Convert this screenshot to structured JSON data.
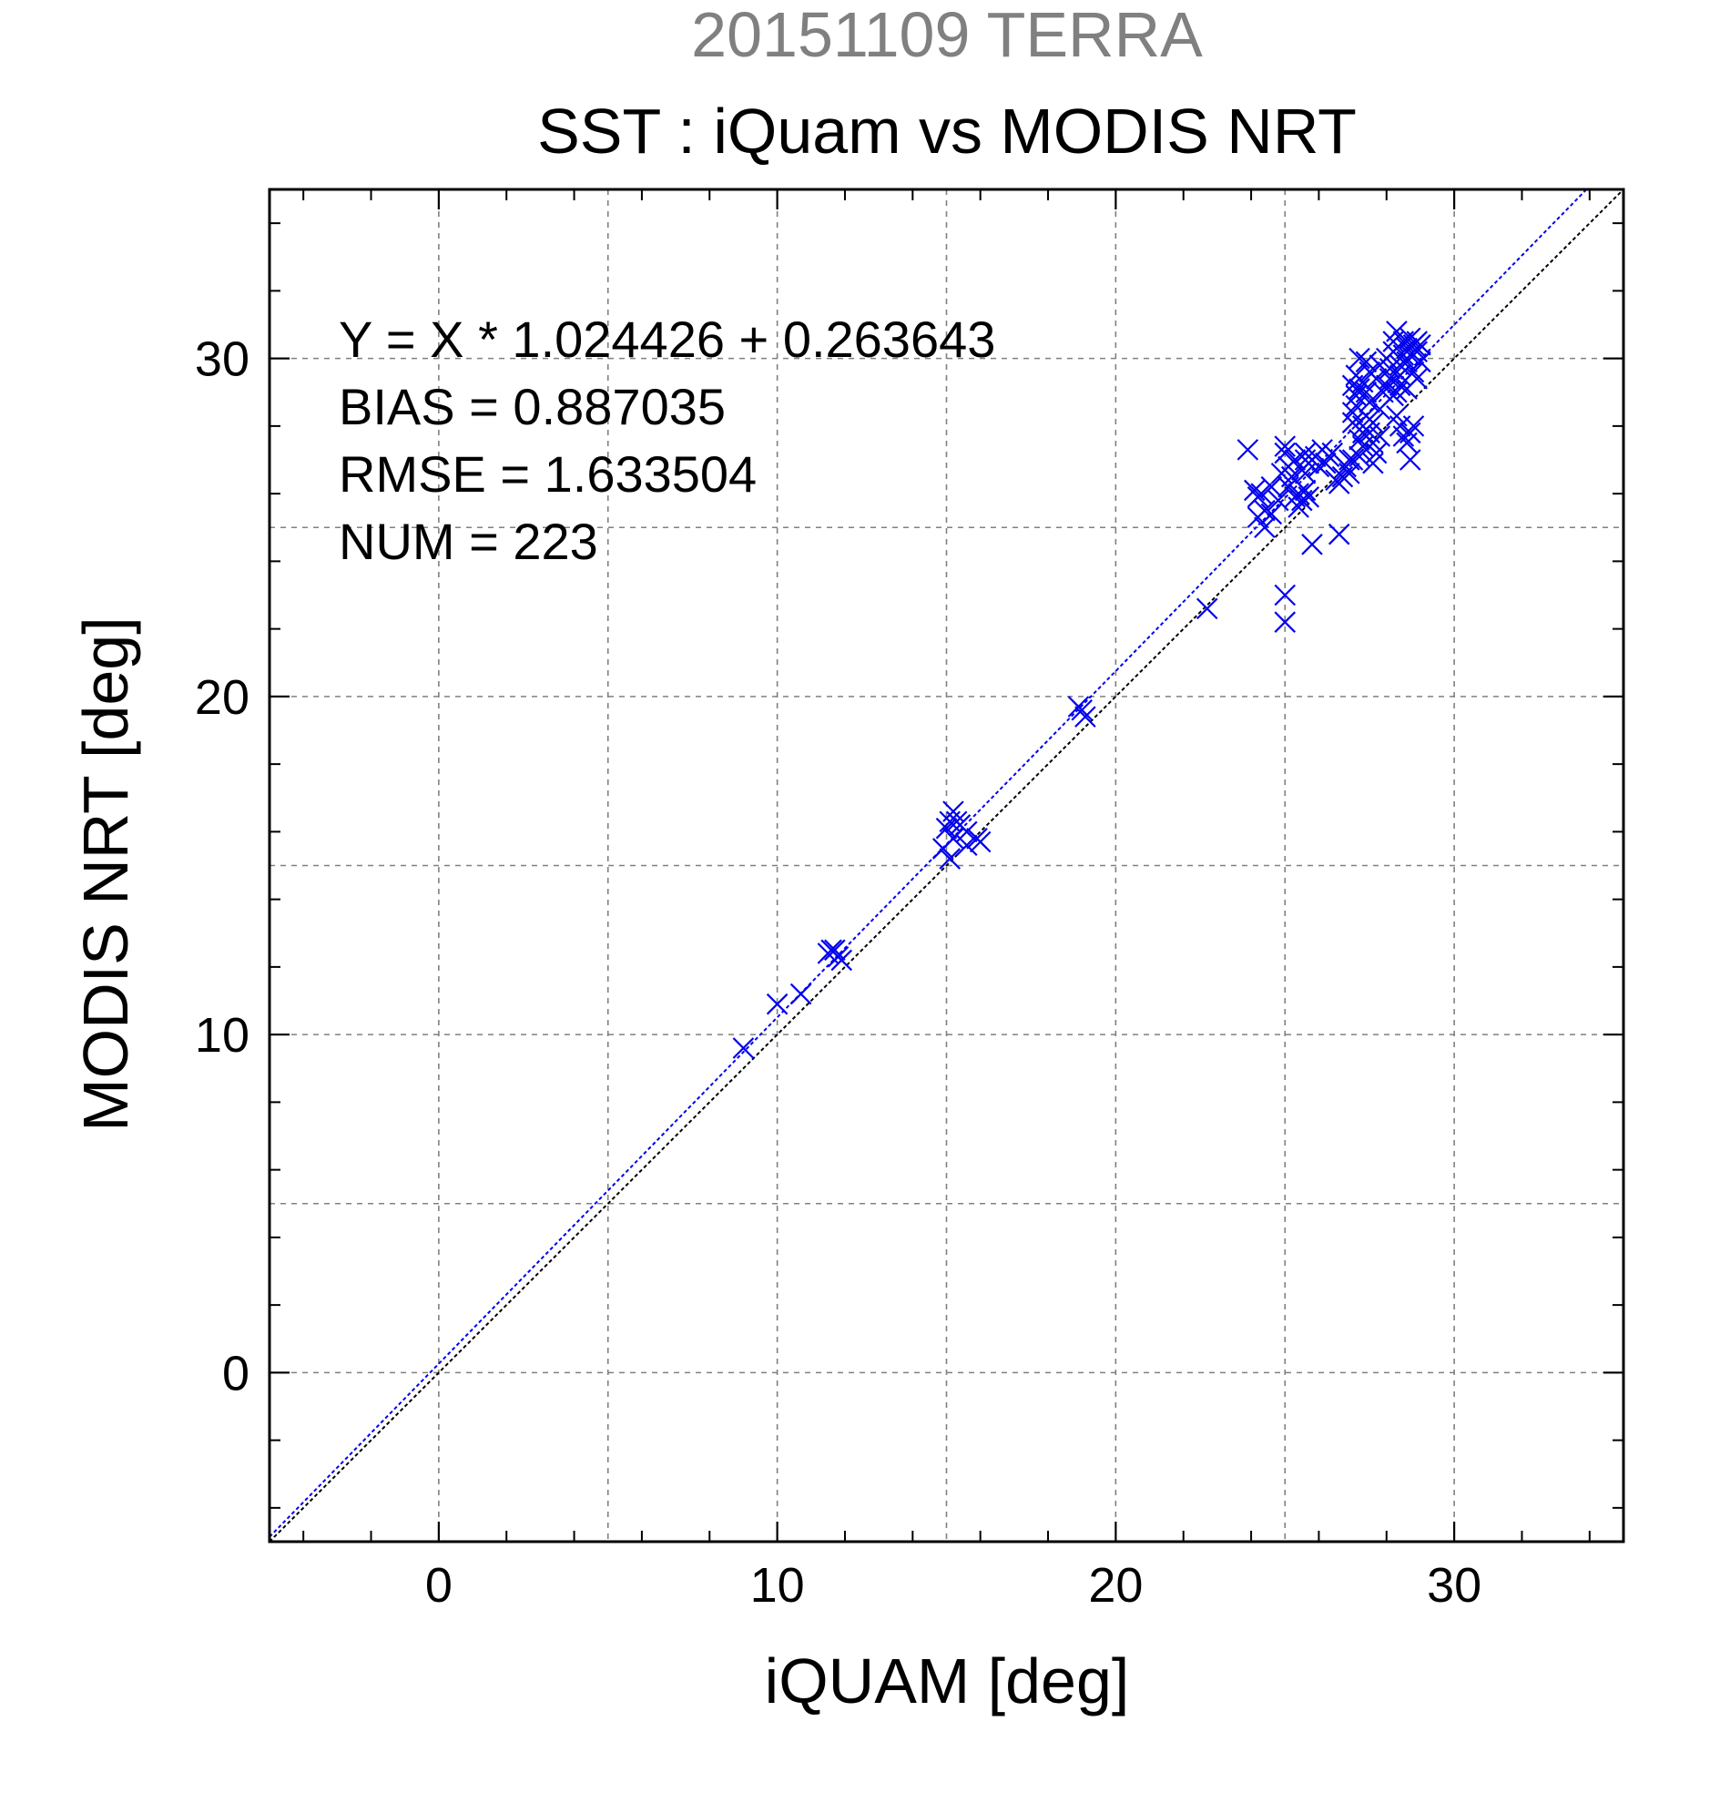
{
  "chart_data": {
    "type": "scatter",
    "title": "20151109 TERRA",
    "subtitle": "SST : iQuam vs MODIS NRT",
    "xlabel": "iQUAM [deg]",
    "ylabel": "MODIS NRT [deg]",
    "xlim": [
      -5,
      35
    ],
    "ylim": [
      -5,
      35
    ],
    "xticks": [
      0,
      10,
      20,
      30
    ],
    "yticks": [
      0,
      10,
      20,
      30
    ],
    "grid": true,
    "stats": {
      "equation": "Y = X * 1.024426 + 0.263643",
      "bias": "BIAS = 0.887035",
      "rmse": "RMSE = 1.633504",
      "num": "NUM = 223"
    },
    "fit": {
      "slope": 1.024426,
      "intercept": 0.263643
    },
    "colors": {
      "title": "#808080",
      "points": "#0000ee",
      "fit_line": "#0000ee",
      "identity_line": "#000000",
      "grid": "#808080"
    },
    "points": [
      [
        9.0,
        9.6
      ],
      [
        10.0,
        10.9
      ],
      [
        10.7,
        11.2
      ],
      [
        11.5,
        12.4
      ],
      [
        11.6,
        12.5
      ],
      [
        11.7,
        12.5
      ],
      [
        11.8,
        12.3
      ],
      [
        11.9,
        12.2
      ],
      [
        14.9,
        15.5
      ],
      [
        15.0,
        16.1
      ],
      [
        15.1,
        16.3
      ],
      [
        15.2,
        16.6
      ],
      [
        15.3,
        16.3
      ],
      [
        15.2,
        15.8
      ],
      [
        15.1,
        15.2
      ],
      [
        15.6,
        16.0
      ],
      [
        15.9,
        15.8
      ],
      [
        16.0,
        15.7
      ],
      [
        15.4,
        16.2
      ],
      [
        15.6,
        15.6
      ],
      [
        18.9,
        19.7
      ],
      [
        19.0,
        19.6
      ],
      [
        19.1,
        19.4
      ],
      [
        22.7,
        22.6
      ],
      [
        23.9,
        27.3
      ],
      [
        24.1,
        26.1
      ],
      [
        24.2,
        25.9
      ],
      [
        24.3,
        26.0
      ],
      [
        24.2,
        25.3
      ],
      [
        24.4,
        25.0
      ],
      [
        24.4,
        25.5
      ],
      [
        24.6,
        25.4
      ],
      [
        24.6,
        26.2
      ],
      [
        24.8,
        25.8
      ],
      [
        25.0,
        23.0
      ],
      [
        25.0,
        22.2
      ],
      [
        24.9,
        26.6
      ],
      [
        25.0,
        27.2
      ],
      [
        25.0,
        27.4
      ],
      [
        25.1,
        26.8
      ],
      [
        25.2,
        26.5
      ],
      [
        25.3,
        27.0
      ],
      [
        25.1,
        26.2
      ],
      [
        25.3,
        25.9
      ],
      [
        25.4,
        26.0
      ],
      [
        25.4,
        25.6
      ],
      [
        25.5,
        25.8
      ],
      [
        25.5,
        26.7
      ],
      [
        25.6,
        27.0
      ],
      [
        25.6,
        27.2
      ],
      [
        25.7,
        26.9
      ],
      [
        25.8,
        27.0
      ],
      [
        25.9,
        27.1
      ],
      [
        25.6,
        26.6
      ],
      [
        25.7,
        25.9
      ],
      [
        25.6,
        26.1
      ],
      [
        25.8,
        24.5
      ],
      [
        26.0,
        26.8
      ],
      [
        26.1,
        27.3
      ],
      [
        26.2,
        26.9
      ],
      [
        26.3,
        27.1
      ],
      [
        26.4,
        27.2
      ],
      [
        26.5,
        26.4
      ],
      [
        26.6,
        26.3
      ],
      [
        26.6,
        24.8
      ],
      [
        26.7,
        26.5
      ],
      [
        26.8,
        26.8
      ],
      [
        26.9,
        27.0
      ],
      [
        26.9,
        26.6
      ],
      [
        27.0,
        28.1
      ],
      [
        27.0,
        28.4
      ],
      [
        27.1,
        28.6
      ],
      [
        27.1,
        28.9
      ],
      [
        27.2,
        29.1
      ],
      [
        27.1,
        29.5
      ],
      [
        27.2,
        30.0
      ],
      [
        27.0,
        29.2
      ],
      [
        27.2,
        27.6
      ],
      [
        27.3,
        27.8
      ],
      [
        27.2,
        27.1
      ],
      [
        27.3,
        27.4
      ],
      [
        27.0,
        27.0
      ],
      [
        27.3,
        28.0
      ],
      [
        27.4,
        28.3
      ],
      [
        27.5,
        28.7
      ],
      [
        27.4,
        29.0
      ],
      [
        27.3,
        29.3
      ],
      [
        27.5,
        29.6
      ],
      [
        27.4,
        29.9
      ],
      [
        27.6,
        28.1
      ],
      [
        27.5,
        27.8
      ],
      [
        27.6,
        27.5
      ],
      [
        27.7,
        27.2
      ],
      [
        27.6,
        26.9
      ],
      [
        27.8,
        27.7
      ],
      [
        27.8,
        28.5
      ],
      [
        27.9,
        29.0
      ],
      [
        27.7,
        29.4
      ],
      [
        27.8,
        29.8
      ],
      [
        28.0,
        30.0
      ],
      [
        28.0,
        29.2
      ],
      [
        28.1,
        29.4
      ],
      [
        28.1,
        29.7
      ],
      [
        28.2,
        30.2
      ],
      [
        28.2,
        30.5
      ],
      [
        28.3,
        30.8
      ],
      [
        28.3,
        29.0
      ],
      [
        28.4,
        29.5
      ],
      [
        28.4,
        29.8
      ],
      [
        28.5,
        30.1
      ],
      [
        28.5,
        30.5
      ],
      [
        28.6,
        30.3
      ],
      [
        28.6,
        29.9
      ],
      [
        28.7,
        30.1
      ],
      [
        28.7,
        30.6
      ],
      [
        28.8,
        30.4
      ],
      [
        28.8,
        29.6
      ],
      [
        28.9,
        30.2
      ],
      [
        28.9,
        30.5
      ],
      [
        29.0,
        29.9
      ],
      [
        29.0,
        30.4
      ],
      [
        28.9,
        29.4
      ],
      [
        28.2,
        28.9
      ],
      [
        28.3,
        28.3
      ],
      [
        28.4,
        28.0
      ],
      [
        28.5,
        27.7
      ],
      [
        28.6,
        27.5
      ],
      [
        28.7,
        27.8
      ],
      [
        28.8,
        28.0
      ],
      [
        28.7,
        27.0
      ],
      [
        28.4,
        29.2
      ],
      [
        28.6,
        29.1
      ]
    ]
  }
}
